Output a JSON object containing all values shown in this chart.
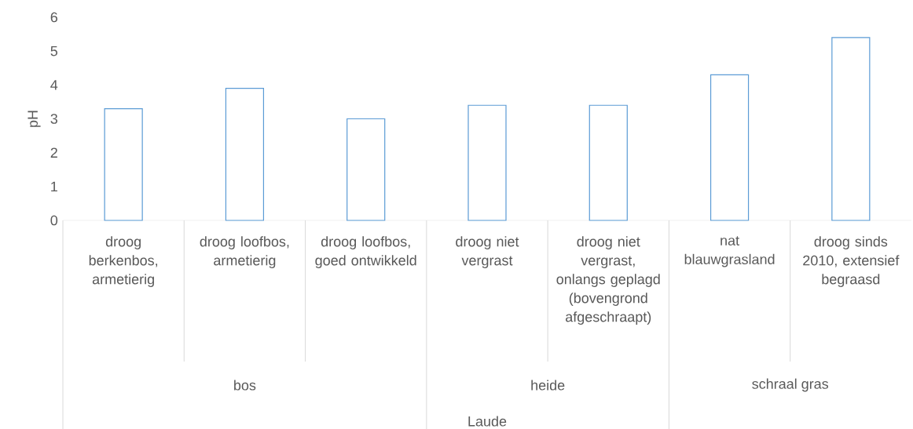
{
  "chart_data": {
    "type": "bar",
    "ylabel": "pH",
    "categories": [
      "droog berkenbos, armetierig",
      "droog loofbos, armetierig",
      "droog loofbos, goed ontwikkeld",
      "droog niet vergrast",
      "droog niet vergrast, onlangs geplagd (bovengrond afgeschraapt)",
      "nat blauwgrasland",
      "droog sinds 2010, extensief begraasd"
    ],
    "values": [
      3.3,
      3.9,
      3.0,
      3.4,
      3.4,
      4.3,
      5.4
    ],
    "color": "#5b9bd5",
    "ylim": [
      0,
      6
    ],
    "yticks": [
      0,
      1,
      2,
      3,
      4,
      5,
      6
    ],
    "annotations": [
      "bos",
      "heide",
      "schraal gras",
      "Laude"
    ]
  }
}
